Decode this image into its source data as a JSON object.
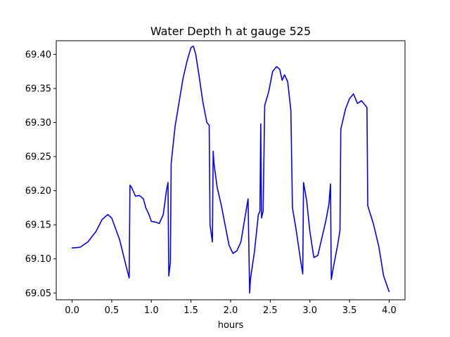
{
  "chart_data": {
    "type": "line",
    "title": "Water Depth h at gauge 525",
    "xlabel": "hours",
    "ylabel": "",
    "xlim": [
      -0.2,
      4.2
    ],
    "ylim": [
      69.04,
      69.42
    ],
    "xticks": [
      0.0,
      0.5,
      1.0,
      1.5,
      2.0,
      2.5,
      3.0,
      3.5,
      4.0
    ],
    "xtick_labels": [
      "0.0",
      "0.5",
      "1.0",
      "1.5",
      "2.0",
      "2.5",
      "3.0",
      "3.5",
      "4.0"
    ],
    "yticks": [
      69.05,
      69.1,
      69.15,
      69.2,
      69.25,
      69.3,
      69.35,
      69.4
    ],
    "ytick_labels": [
      "69.05",
      "69.10",
      "69.15",
      "69.20",
      "69.25",
      "69.30",
      "69.35",
      "69.40"
    ],
    "grid": false,
    "series": [
      {
        "color": "#0000ff",
        "x": [
          0.0,
          0.1,
          0.2,
          0.3,
          0.38,
          0.45,
          0.5,
          0.6,
          0.68,
          0.72,
          0.73,
          0.75,
          0.8,
          0.85,
          0.9,
          0.93,
          0.97,
          1.0,
          1.05,
          1.1,
          1.15,
          1.19,
          1.21,
          1.22,
          1.24,
          1.25,
          1.3,
          1.35,
          1.4,
          1.45,
          1.5,
          1.53,
          1.56,
          1.6,
          1.65,
          1.7,
          1.73,
          1.74,
          1.77,
          1.78,
          1.79,
          1.83,
          1.88,
          1.93,
          1.98,
          2.03,
          2.08,
          2.13,
          2.18,
          2.22,
          2.24,
          2.25,
          2.3,
          2.35,
          2.37,
          2.38,
          2.39,
          2.41,
          2.43,
          2.48,
          2.53,
          2.58,
          2.62,
          2.65,
          2.68,
          2.72,
          2.76,
          2.78,
          2.83,
          2.88,
          2.91,
          2.92,
          2.96,
          3.0,
          3.05,
          3.1,
          3.15,
          3.2,
          3.24,
          3.26,
          3.27,
          3.3,
          3.35,
          3.38,
          3.39,
          3.45,
          3.5,
          3.55,
          3.6,
          3.65,
          3.68,
          3.72,
          3.73,
          3.8,
          3.87,
          3.93,
          4.0
        ],
        "y": [
          69.116,
          69.117,
          69.125,
          69.14,
          69.158,
          69.165,
          69.16,
          69.128,
          69.09,
          69.072,
          69.208,
          69.205,
          69.192,
          69.193,
          69.188,
          69.175,
          69.165,
          69.155,
          69.154,
          69.152,
          69.165,
          69.2,
          69.212,
          69.075,
          69.095,
          69.24,
          69.295,
          69.33,
          69.365,
          69.39,
          69.41,
          69.412,
          69.4,
          69.37,
          69.33,
          69.3,
          69.296,
          69.15,
          69.125,
          69.258,
          69.24,
          69.205,
          69.18,
          69.15,
          69.12,
          69.108,
          69.112,
          69.125,
          69.16,
          69.188,
          69.05,
          69.07,
          69.11,
          69.165,
          69.17,
          69.298,
          69.16,
          69.17,
          69.325,
          69.345,
          69.375,
          69.382,
          69.378,
          69.362,
          69.37,
          69.36,
          69.318,
          69.175,
          69.14,
          69.1,
          69.078,
          69.212,
          69.185,
          69.14,
          69.102,
          69.105,
          69.13,
          69.155,
          69.18,
          69.21,
          69.07,
          69.09,
          69.12,
          69.142,
          69.29,
          69.32,
          69.335,
          69.342,
          69.328,
          69.332,
          69.328,
          69.322,
          69.178,
          69.152,
          69.118,
          69.075,
          69.052
        ]
      }
    ]
  }
}
